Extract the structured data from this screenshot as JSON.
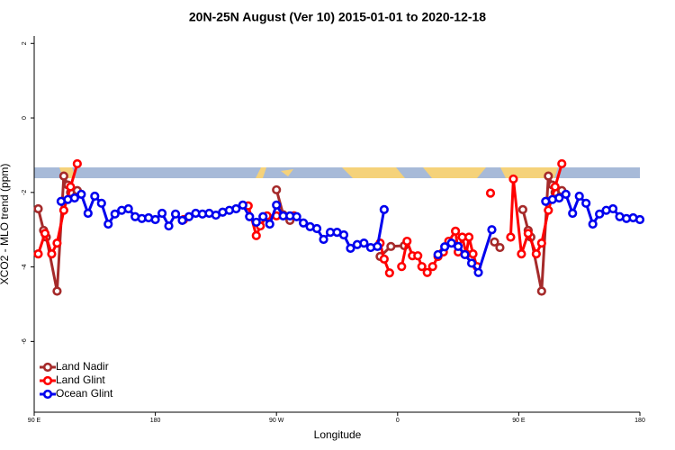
{
  "chart_data": {
    "type": "line",
    "title": "20N-25N August (Ver 10)   2015-01-01 to 2020-12-18",
    "x_label": "Longitude",
    "y_label": "XCO2 - MLO trend (ppm)",
    "xlim": [
      90,
      540
    ],
    "ylim": [
      -7.9,
      2.2
    ],
    "xticks": [
      {
        "value": 90,
        "label": "90 E"
      },
      180,
      {
        "value": 270,
        "label": "90 W"
      },
      {
        "value": 360,
        "label": "0"
      },
      {
        "value": 450,
        "label": "90 E"
      },
      {
        "value": 540,
        "label": "180"
      }
    ],
    "yticks": [
      -6,
      -4,
      -2,
      0,
      2
    ],
    "legend": "bottom-left",
    "series": [
      {
        "name": "Land Nadir",
        "color": "#a52a2a",
        "x": [
          93,
          97,
          99,
          107,
          112,
          115,
          117,
          122,
          200,
          270,
          275,
          280,
          283,
          320,
          347,
          355,
          365,
          400,
          432,
          436,
          445,
          453,
          457,
          459,
          467,
          472,
          475,
          477,
          482
        ],
        "values": [
          -2.44,
          -3.02,
          -3.2,
          -4.65,
          -1.56,
          -1.8,
          -2.0,
          -1.95,
          null,
          -1.93,
          -2.6,
          -2.75,
          -2.63,
          null,
          -3.72,
          -3.45,
          -3.43,
          null,
          -3.33,
          -3.48,
          null,
          -2.46,
          -3.02,
          -3.2,
          -4.65,
          -1.56,
          -1.8,
          -2.0,
          -1.95
        ]
      },
      {
        "name": "Land Glint",
        "color": "#ff0000",
        "x": [
          93,
          98,
          103,
          107,
          112,
          117,
          122,
          160,
          201,
          225,
          249,
          255,
          258,
          263,
          270,
          283,
          320,
          347,
          350,
          354,
          358,
          363,
          367,
          371,
          375,
          378,
          382,
          386,
          390,
          394,
          398,
          403,
          405,
          408,
          411,
          413,
          416,
          419,
          424,
          429,
          436,
          444,
          446,
          452,
          457,
          463,
          467,
          472,
          477,
          482
        ],
        "values": [
          -3.65,
          -3.1,
          -3.65,
          -3.36,
          -2.48,
          -1.85,
          -1.23,
          null,
          -2.73,
          null,
          -2.36,
          -3.16,
          -2.9,
          -2.63,
          -2.63,
          -2.63,
          null,
          -3.36,
          -3.79,
          -4.16,
          null,
          -3.99,
          -3.31,
          -3.7,
          -3.7,
          -3.99,
          -4.15,
          -3.99,
          -3.72,
          -3.6,
          -3.31,
          -3.04,
          -3.6,
          -3.2,
          -3.65,
          -3.2,
          -3.65,
          -3.99,
          null,
          -2.02,
          null,
          -3.2,
          -1.64,
          -3.65,
          -3.1,
          -3.65,
          -3.36,
          -2.48,
          -1.85,
          -1.23
        ]
      },
      {
        "name": "Ocean Glint",
        "color": "#0000ee",
        "x": [
          110,
          115,
          120,
          125,
          130,
          135,
          140,
          145,
          150,
          155,
          160,
          165,
          170,
          175,
          180,
          185,
          190,
          195,
          200,
          205,
          210,
          215,
          220,
          225,
          230,
          235,
          240,
          245,
          250,
          255,
          260,
          265,
          270,
          275,
          280,
          285,
          290,
          295,
          300,
          305,
          310,
          315,
          320,
          325,
          330,
          335,
          340,
          345,
          350,
          370,
          390,
          395,
          400,
          405,
          410,
          415,
          420,
          430,
          450,
          470,
          475,
          480,
          485,
          490,
          495,
          500,
          505,
          510,
          515,
          520,
          525,
          530,
          535,
          540
        ],
        "values": [
          -2.24,
          -2.19,
          -2.15,
          -2.05,
          -2.56,
          -2.1,
          -2.29,
          -2.85,
          -2.58,
          -2.48,
          -2.44,
          -2.65,
          -2.7,
          -2.68,
          -2.73,
          -2.56,
          -2.9,
          -2.58,
          -2.75,
          -2.65,
          -2.56,
          -2.58,
          -2.56,
          -2.61,
          -2.53,
          -2.48,
          -2.44,
          -2.34,
          -2.65,
          -2.8,
          -2.65,
          -2.85,
          -2.34,
          -2.63,
          -2.63,
          -2.65,
          -2.82,
          -2.92,
          -2.97,
          -3.26,
          -3.07,
          -3.07,
          -3.14,
          -3.5,
          -3.4,
          -3.36,
          -3.48,
          -3.45,
          -2.46,
          null,
          -3.67,
          -3.46,
          -3.36,
          -3.45,
          -3.67,
          -3.9,
          -4.15,
          -3.0,
          null,
          -2.24,
          -2.19,
          -2.15,
          -2.05,
          -2.56,
          -2.1,
          -2.29,
          -2.85,
          -2.58,
          -2.48,
          -2.44,
          -2.65,
          -2.7,
          -2.68,
          -2.73
        ]
      }
    ]
  }
}
